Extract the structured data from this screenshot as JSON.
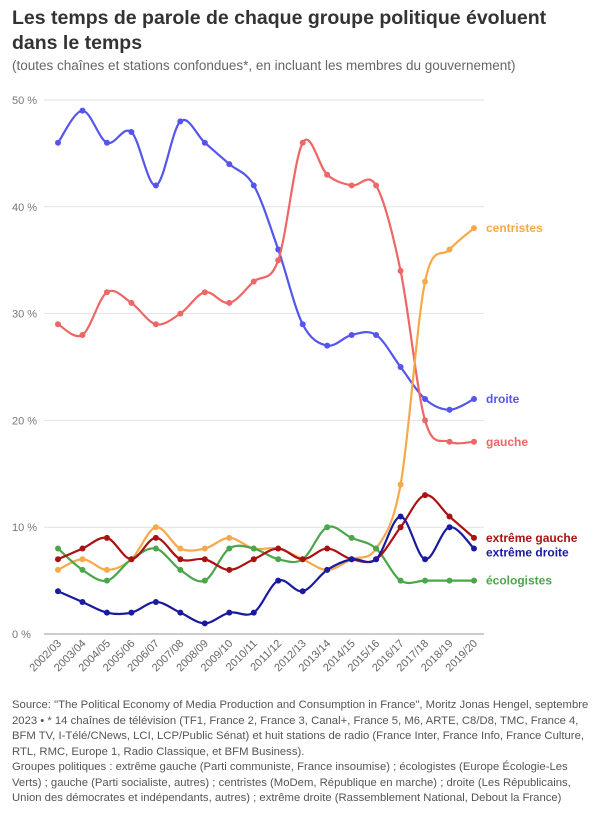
{
  "title": "Les temps de parole de chaque groupe politique évoluent dans le temps",
  "subtitle": "(toutes chaînes et stations confondues*, en incluant les membres du gouvernement)",
  "footer": {
    "source": "Source: \"The Political Economy of Media Production and Consumption in France\", Moritz Jonas Hengel, septembre 2023 • * 14 chaînes de télévision (TF1, France 2, France 3, Canal+, France 5, M6, ARTE, C8/D8, TMC, France 4, BFM TV, I-Télé/CNews, LCI, LCP/Public Sénat) et huit stations de radio (France Inter, France Info, France Culture, RTL, RMC, Europe 1, Radio Classique, et BFM Business).",
    "groups": "Groupes politiques : extrême gauche (Parti communiste, France insoumise) ; écologistes (Europe Écologie-Les Verts) ; gauche (Parti socialiste, autres) ; centristes (MoDem, République en marche) ; droite (Les Républicains, Union des démocrates et indépendants, autres) ; extrême droite (Rassemblement National, Debout la France)"
  },
  "chart_data": {
    "type": "line",
    "categories": [
      "2002/03",
      "2003/04",
      "2004/05",
      "2005/06",
      "2006/07",
      "2007/08",
      "2008/09",
      "2009/10",
      "2010/11",
      "2011/12",
      "2012/13",
      "2013/14",
      "2014/15",
      "2015/16",
      "2016/17",
      "2017/18",
      "2018/19",
      "2019/20"
    ],
    "ylim": [
      0,
      50
    ],
    "yticks": [
      0,
      10,
      20,
      30,
      40,
      50
    ],
    "ytick_labels": [
      "0 %",
      "10 %",
      "20 %",
      "30 %",
      "40 %",
      "50 %"
    ],
    "grid": true,
    "legend": "direct labels at line ends",
    "series": [
      {
        "name": "droite",
        "color": "#5555ee",
        "values": [
          46,
          49,
          46,
          47,
          42,
          48,
          46,
          44,
          42,
          36,
          29,
          27,
          28,
          28,
          25,
          22,
          21,
          22
        ]
      },
      {
        "name": "gauche",
        "color": "#ee6666",
        "values": [
          29,
          28,
          32,
          31,
          29,
          30,
          32,
          31,
          33,
          35,
          46,
          43,
          42,
          42,
          34,
          20,
          18,
          18
        ]
      },
      {
        "name": "centristes",
        "color": "#f7a94a",
        "values": [
          6,
          7,
          6,
          7,
          10,
          8,
          8,
          9,
          8,
          8,
          7,
          6,
          7,
          8,
          14,
          33,
          36,
          38
        ]
      },
      {
        "name": "écologistes",
        "color": "#4aa64a",
        "values": [
          8,
          6,
          5,
          7,
          8,
          6,
          5,
          8,
          8,
          7,
          7,
          10,
          9,
          8,
          5,
          5,
          5,
          5
        ]
      },
      {
        "name": "extrême gauche",
        "color": "#aa1111",
        "values": [
          7,
          8,
          9,
          7,
          9,
          7,
          7,
          6,
          7,
          8,
          7,
          8,
          7,
          7,
          10,
          13,
          11,
          9
        ]
      },
      {
        "name": "extrême droite",
        "color": "#1a1aa0",
        "values": [
          4,
          3,
          2,
          2,
          3,
          2,
          1,
          2,
          2,
          5,
          4,
          6,
          7,
          7,
          11,
          7,
          10,
          8
        ]
      }
    ]
  }
}
